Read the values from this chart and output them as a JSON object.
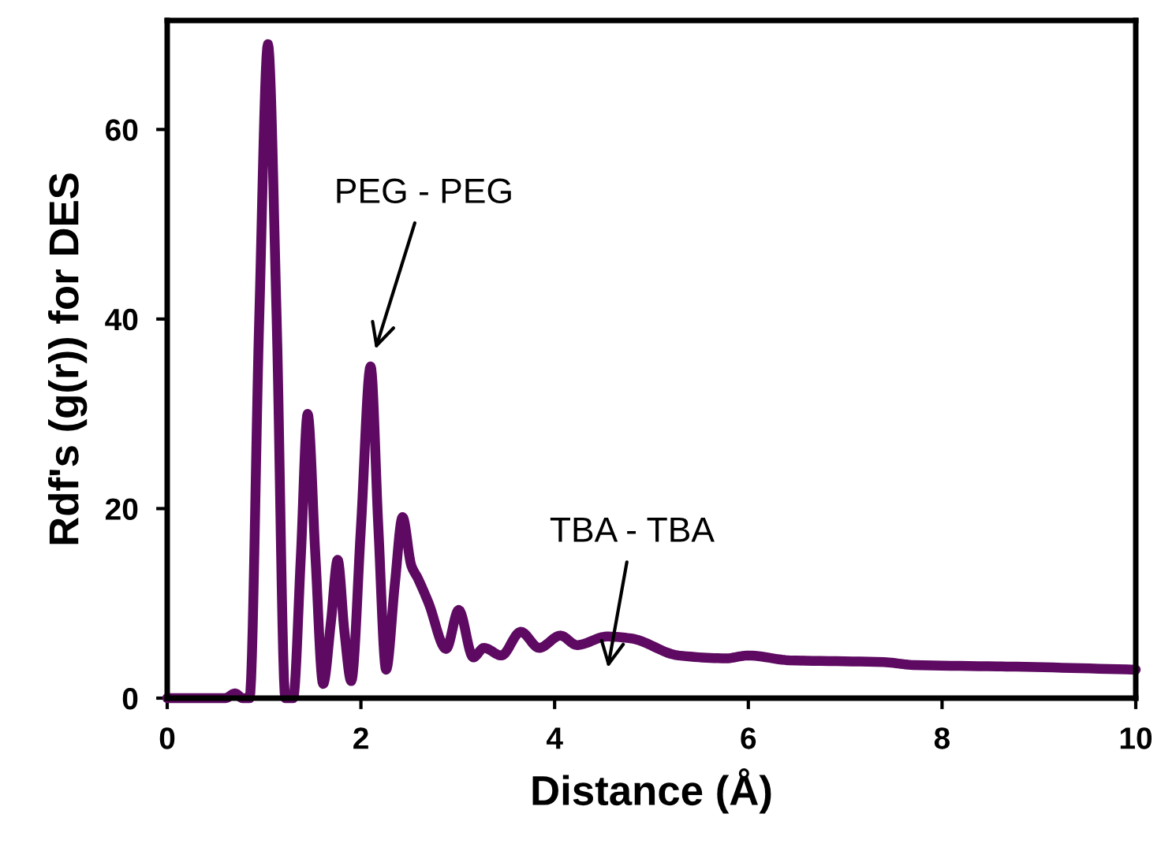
{
  "chart_data": {
    "type": "line",
    "xlabel": "Distance (Å)",
    "ylabel": "Rdf's (g(r)) for DES",
    "x": [
      0,
      0.6,
      0.7,
      0.78,
      0.85,
      0.95,
      1.04,
      1.13,
      1.22,
      1.3,
      1.38,
      1.45,
      1.53,
      1.61,
      1.69,
      1.76,
      1.83,
      1.9,
      2.0,
      2.1,
      2.18,
      2.26,
      2.35,
      2.43,
      2.52,
      2.59,
      2.7,
      2.88,
      3.01,
      3.16,
      3.27,
      3.45,
      3.65,
      3.84,
      4.06,
      4.23,
      4.54,
      4.79,
      5.28,
      5.77,
      6.0,
      6.42,
      7.4,
      7.7,
      8.86,
      10
    ],
    "series": [
      {
        "color": "#5e0a62",
        "values": [
          0,
          0,
          0.5,
          0,
          0,
          40,
          69,
          40,
          0,
          0,
          15,
          30,
          15,
          1.5,
          8,
          14.6,
          7,
          1.8,
          18,
          35,
          18,
          3,
          12,
          19.1,
          14,
          12.6,
          10,
          5.2,
          9.3,
          4.3,
          5.3,
          4.5,
          7,
          5.3,
          6.6,
          5.6,
          6.5,
          6.3,
          4.5,
          4.2,
          4.5,
          4.0,
          3.8,
          3.5,
          3.3,
          3.0
        ]
      }
    ],
    "xlim": [
      0,
      10
    ],
    "ylim": [
      0,
      71.5
    ],
    "xticks": [
      0,
      2,
      4,
      6,
      8,
      10
    ],
    "yticks": [
      0,
      20,
      40,
      60
    ],
    "grid": false,
    "legend": false,
    "marker": "none",
    "line_style": "solid",
    "annotations": [
      "PEG - PEG",
      "TBA - TBA"
    ]
  }
}
